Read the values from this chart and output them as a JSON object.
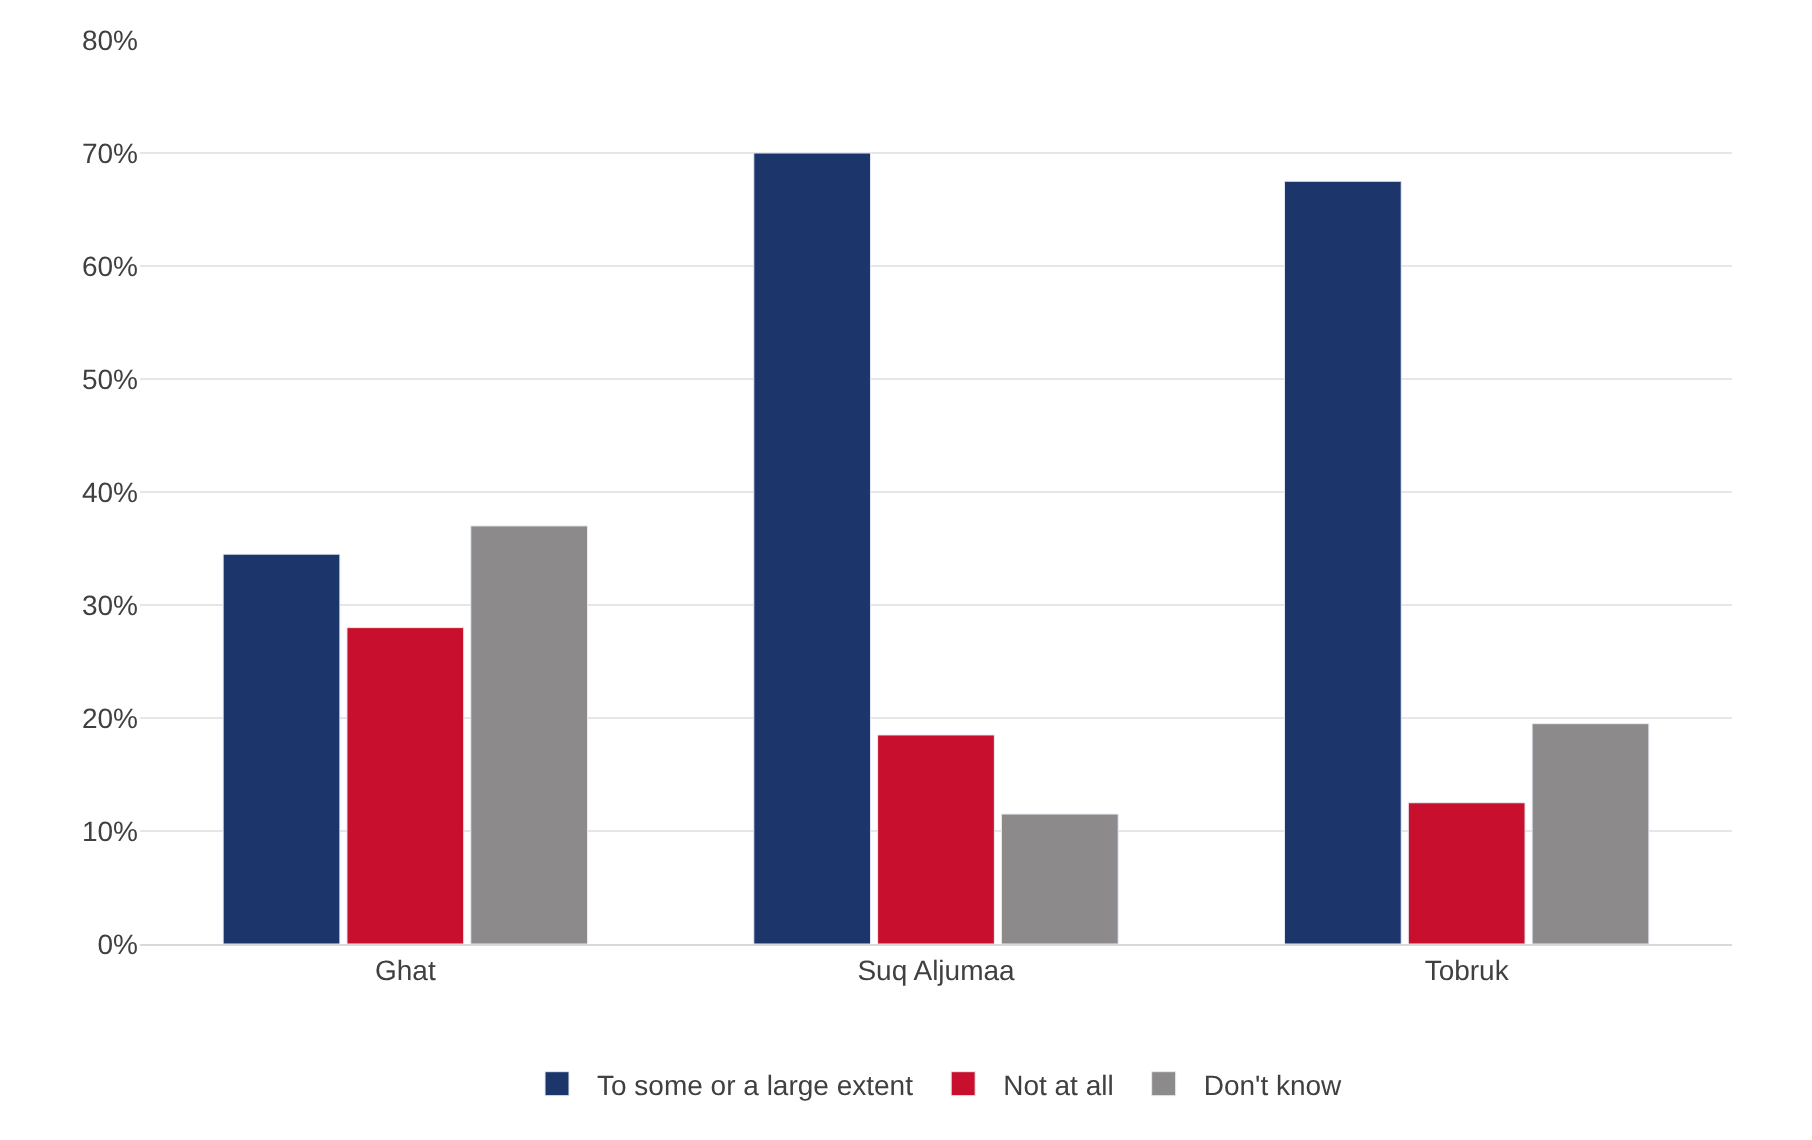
{
  "chart_data": {
    "type": "bar",
    "categories": [
      "Ghat",
      "Suq Aljumaa",
      "Tobruk"
    ],
    "series": [
      {
        "name": "To some or a large extent",
        "color": "#1c366b",
        "values": [
          34.5,
          70,
          67.5
        ]
      },
      {
        "name": "Not at all",
        "color": "#c8102e",
        "values": [
          28,
          18.5,
          12.5
        ]
      },
      {
        "name": "Don't know",
        "color": "#8c8a8a",
        "values": [
          37,
          11.5,
          19.5
        ]
      }
    ],
    "ylim": [
      0,
      80
    ],
    "yticks": [
      {
        "value": 0,
        "label": "0%"
      },
      {
        "value": 10,
        "label": "10%"
      },
      {
        "value": 20,
        "label": "20%"
      },
      {
        "value": 30,
        "label": "30%"
      },
      {
        "value": 40,
        "label": "40%"
      },
      {
        "value": 50,
        "label": "50%"
      },
      {
        "value": 60,
        "label": "60%"
      },
      {
        "value": 70,
        "label": "70%"
      },
      {
        "value": 80,
        "label": "80%"
      }
    ],
    "grid": "y",
    "legend": "bottom"
  }
}
